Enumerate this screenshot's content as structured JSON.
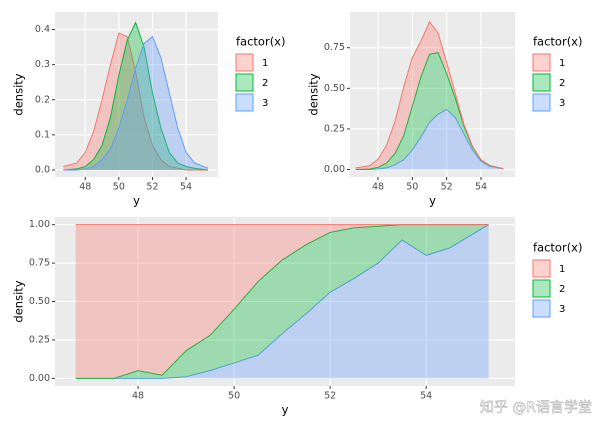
{
  "chart_data": [
    {
      "type": "area",
      "position": "identity",
      "x_label": "y",
      "y_label": "density",
      "legend_title": "factor(x)",
      "grid": true,
      "x": [
        46.7,
        47.5,
        48,
        48.5,
        49,
        49.5,
        50,
        50.5,
        51,
        51.5,
        52,
        52.5,
        53,
        53.5,
        54,
        54.5,
        55.3
      ],
      "xlim": [
        46.2,
        55.9
      ],
      "xticks": [
        48,
        50,
        52,
        54
      ],
      "ylim": [
        -0.02,
        0.45
      ],
      "yticks": [
        {
          "value": 0,
          "label": "0.0"
        },
        0.1,
        0.2,
        0.3,
        0.4
      ],
      "series": [
        {
          "name": "1",
          "color": "#F8766D",
          "values": [
            0.01,
            0.02,
            0.05,
            0.11,
            0.2,
            0.3,
            0.39,
            0.38,
            0.28,
            0.15,
            0.07,
            0.03,
            0.01,
            0.005,
            0,
            0,
            0
          ]
        },
        {
          "name": "2",
          "color": "#00BA38",
          "values": [
            0,
            0.003,
            0.01,
            0.03,
            0.07,
            0.15,
            0.27,
            0.37,
            0.42,
            0.35,
            0.22,
            0.12,
            0.05,
            0.02,
            0.01,
            0.005,
            0
          ]
        },
        {
          "name": "3",
          "color": "#619CFF",
          "values": [
            0,
            0,
            0.003,
            0.01,
            0.03,
            0.06,
            0.12,
            0.2,
            0.29,
            0.36,
            0.38,
            0.32,
            0.22,
            0.12,
            0.05,
            0.02,
            0.005
          ]
        }
      ]
    },
    {
      "type": "area",
      "position": "stack",
      "x_label": "y",
      "y_label": "density",
      "legend_title": "factor(x)",
      "grid": true,
      "x": [
        46.7,
        47.5,
        48,
        48.5,
        49,
        49.5,
        50,
        50.5,
        51,
        51.5,
        52,
        52.5,
        53,
        53.5,
        54,
        54.5,
        55.3
      ],
      "xlim": [
        46.37,
        55.98
      ],
      "xticks": [
        48,
        50,
        52,
        54
      ],
      "ylim": [
        -0.046,
        0.97
      ],
      "yticks": [
        {
          "value": 0,
          "label": "0.00"
        },
        0.25,
        {
          "value": 0.5,
          "label": "0.50"
        },
        0.75
      ],
      "series": [
        {
          "name": "1",
          "color": "#F8766D",
          "values": [
            0.01,
            0.02,
            0.05,
            0.11,
            0.2,
            0.3,
            0.3,
            0.22,
            0.2,
            0.12,
            0.07,
            0.03,
            0.01,
            0.005,
            0,
            0,
            0
          ]
        },
        {
          "name": "2",
          "color": "#00BA38",
          "values": [
            0,
            0.003,
            0.01,
            0.03,
            0.07,
            0.15,
            0.27,
            0.37,
            0.42,
            0.38,
            0.22,
            0.12,
            0.05,
            0.02,
            0.01,
            0.005,
            0
          ]
        },
        {
          "name": "3",
          "color": "#619CFF",
          "values": [
            0,
            0,
            0.003,
            0.01,
            0.03,
            0.06,
            0.12,
            0.2,
            0.29,
            0.34,
            0.37,
            0.32,
            0.22,
            0.12,
            0.05,
            0.02,
            0.005
          ]
        }
      ]
    },
    {
      "type": "area",
      "position": "fill",
      "x_label": "y",
      "y_label": "density",
      "legend_title": "factor(x)",
      "grid": true,
      "x": [
        46.7,
        47.5,
        48,
        48.5,
        49,
        49.5,
        50,
        50.5,
        51,
        51.5,
        52,
        52.5,
        53,
        53.5,
        54,
        54.5,
        55.3
      ],
      "xlim": [
        46.27,
        55.85
      ],
      "xticks": [
        48,
        50,
        52,
        54
      ],
      "ylim": [
        -0.05,
        1.05
      ],
      "yticks": [
        {
          "value": 0,
          "label": "0.00"
        },
        0.25,
        {
          "value": 0.5,
          "label": "0.50"
        },
        0.75,
        {
          "value": 1,
          "label": "1.00"
        }
      ],
      "series": [
        {
          "name": "1",
          "color": "#F8766D",
          "values": [
            1,
            1,
            0.95,
            0.98,
            0.82,
            0.72,
            0.55,
            0.37,
            0.23,
            0.13,
            0.05,
            0.02,
            0.01,
            0,
            0,
            0,
            0
          ]
        },
        {
          "name": "2",
          "color": "#00BA38",
          "values": [
            0,
            0,
            0.05,
            0.02,
            0.17,
            0.23,
            0.35,
            0.48,
            0.48,
            0.45,
            0.39,
            0.33,
            0.24,
            0.1,
            0.2,
            0.15,
            0
          ]
        },
        {
          "name": "3",
          "color": "#619CFF",
          "values": [
            0,
            0,
            0,
            0,
            0.01,
            0.05,
            0.1,
            0.15,
            0.29,
            0.42,
            0.56,
            0.65,
            0.75,
            0.9,
            0.8,
            0.85,
            1
          ]
        }
      ]
    }
  ],
  "watermark": "知乎 @R语言学堂"
}
